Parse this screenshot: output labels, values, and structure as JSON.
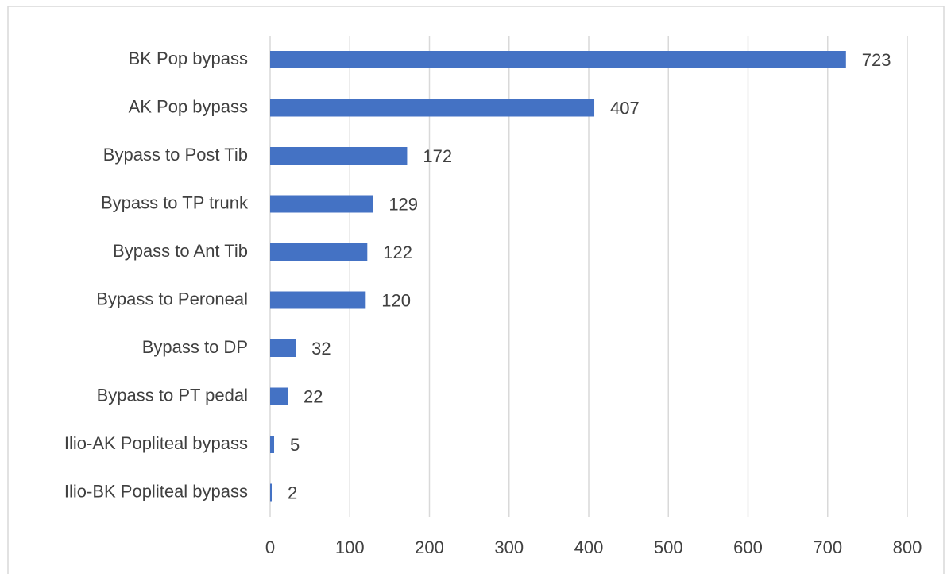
{
  "chart_data": {
    "type": "bar",
    "orientation": "horizontal",
    "categories": [
      "BK Pop bypass",
      "AK Pop bypass",
      "Bypass to Post Tib",
      "Bypass to TP trunk",
      "Bypass to Ant Tib",
      "Bypass to Peroneal",
      "Bypass to DP",
      "Bypass to PT pedal",
      "Ilio-AK Popliteal bypass",
      "Ilio-BK Popliteal bypass"
    ],
    "values": [
      723,
      407,
      172,
      129,
      122,
      120,
      32,
      22,
      5,
      2
    ],
    "color": "#4472c4",
    "xlim": [
      0,
      800
    ],
    "xticks": [
      0,
      100,
      200,
      300,
      400,
      500,
      600,
      700,
      800
    ],
    "grid": true
  }
}
